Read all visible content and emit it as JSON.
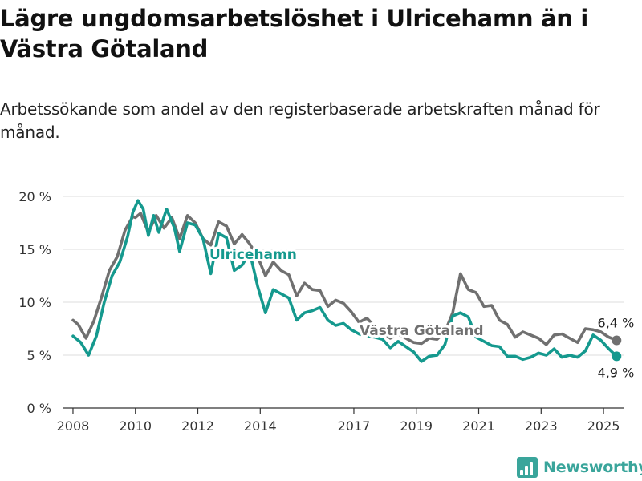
{
  "header": {
    "title": "Lägre ungdomsarbetslöshet i Ulricehamn än i Västra Götaland",
    "subtitle": "Arbetssökande som andel av den registerbaserade arbetskraften månad för månad."
  },
  "brand": {
    "name": "Newsworthy",
    "color": "#3aa59b",
    "icon": "bar-chart-logo-icon"
  },
  "chart_data": {
    "type": "line",
    "title": "Lägre ungdomsarbetslöshet i Ulricehamn än i Västra Götaland",
    "subtitle": "Arbetssökande som andel av den registerbaserade arbetskraften månad för månad.",
    "xlabel": "",
    "ylabel": "",
    "xlim": [
      "2007-09",
      "2025-09"
    ],
    "ylim": [
      0,
      20
    ],
    "grid": true,
    "legend": "inline labels",
    "x_ticks": [
      "2008",
      "2010",
      "2012",
      "2014",
      "2017",
      "2019",
      "2021",
      "2023",
      "2025"
    ],
    "y_ticks": [
      {
        "value": 0,
        "label": "0 %"
      },
      {
        "value": 5,
        "label": "5 %"
      },
      {
        "value": 10,
        "label": "10 %"
      },
      {
        "value": 15,
        "label": "15 %"
      },
      {
        "value": 20,
        "label": "20 %"
      }
    ],
    "series": [
      {
        "name": "Västra Götaland",
        "color": "#707070",
        "end_label": "6,4 %",
        "points": [
          [
            "2008-01",
            8.3
          ],
          [
            "2008-03",
            7.9
          ],
          [
            "2008-06",
            6.6
          ],
          [
            "2008-09",
            8.2
          ],
          [
            "2008-12",
            10.5
          ],
          [
            "2009-03",
            13.0
          ],
          [
            "2009-06",
            14.3
          ],
          [
            "2009-09",
            16.8
          ],
          [
            "2009-12",
            18.1
          ],
          [
            "2010-01",
            18.0
          ],
          [
            "2010-03",
            18.4
          ],
          [
            "2010-06",
            16.6
          ],
          [
            "2010-09",
            18.2
          ],
          [
            "2010-12",
            17.0
          ],
          [
            "2011-03",
            18.0
          ],
          [
            "2011-06",
            16.0
          ],
          [
            "2011-09",
            18.2
          ],
          [
            "2011-12",
            17.5
          ],
          [
            "2012-03",
            16.0
          ],
          [
            "2012-06",
            15.4
          ],
          [
            "2012-09",
            17.6
          ],
          [
            "2012-12",
            17.2
          ],
          [
            "2013-03",
            15.5
          ],
          [
            "2013-06",
            16.4
          ],
          [
            "2013-09",
            15.5
          ],
          [
            "2013-12",
            14.3
          ],
          [
            "2014-03",
            12.5
          ],
          [
            "2014-06",
            13.8
          ],
          [
            "2014-09",
            13.0
          ],
          [
            "2014-12",
            12.6
          ],
          [
            "2015-03",
            10.6
          ],
          [
            "2015-06",
            11.8
          ],
          [
            "2015-09",
            11.2
          ],
          [
            "2015-12",
            11.1
          ],
          [
            "2016-03",
            9.6
          ],
          [
            "2016-06",
            10.2
          ],
          [
            "2016-09",
            9.9
          ],
          [
            "2016-12",
            9.1
          ],
          [
            "2017-03",
            8.1
          ],
          [
            "2017-06",
            8.5
          ],
          [
            "2017-09",
            7.7
          ],
          [
            "2017-12",
            7.2
          ],
          [
            "2018-03",
            6.6
          ],
          [
            "2018-06",
            7.0
          ],
          [
            "2018-09",
            6.6
          ],
          [
            "2018-12",
            6.2
          ],
          [
            "2019-03",
            6.1
          ],
          [
            "2019-06",
            6.6
          ],
          [
            "2019-09",
            6.5
          ],
          [
            "2019-12",
            7.2
          ],
          [
            "2020-03",
            9.0
          ],
          [
            "2020-06",
            12.7
          ],
          [
            "2020-09",
            11.2
          ],
          [
            "2020-12",
            10.9
          ],
          [
            "2021-03",
            9.6
          ],
          [
            "2021-06",
            9.7
          ],
          [
            "2021-09",
            8.3
          ],
          [
            "2021-12",
            7.9
          ],
          [
            "2022-03",
            6.7
          ],
          [
            "2022-06",
            7.2
          ],
          [
            "2022-09",
            6.9
          ],
          [
            "2022-12",
            6.6
          ],
          [
            "2023-03",
            6.0
          ],
          [
            "2023-06",
            6.9
          ],
          [
            "2023-09",
            7.0
          ],
          [
            "2023-12",
            6.6
          ],
          [
            "2024-03",
            6.2
          ],
          [
            "2024-06",
            7.5
          ],
          [
            "2024-09",
            7.4
          ],
          [
            "2024-12",
            7.2
          ],
          [
            "2025-03",
            6.7
          ],
          [
            "2025-06",
            6.4
          ]
        ]
      },
      {
        "name": "Ulricehamn",
        "color": "#15998e",
        "end_label": "4,9 %",
        "points": [
          [
            "2008-01",
            6.8
          ],
          [
            "2008-04",
            6.2
          ],
          [
            "2008-07",
            5.0
          ],
          [
            "2008-10",
            6.8
          ],
          [
            "2009-01",
            10.0
          ],
          [
            "2009-04",
            12.5
          ],
          [
            "2009-07",
            13.8
          ],
          [
            "2009-10",
            16.2
          ],
          [
            "2009-12",
            18.5
          ],
          [
            "2010-02",
            19.6
          ],
          [
            "2010-04",
            18.8
          ],
          [
            "2010-06",
            16.3
          ],
          [
            "2010-08",
            18.2
          ],
          [
            "2010-10",
            16.6
          ],
          [
            "2011-01",
            18.8
          ],
          [
            "2011-04",
            17.0
          ],
          [
            "2011-06",
            14.8
          ],
          [
            "2011-09",
            17.5
          ],
          [
            "2011-12",
            17.3
          ],
          [
            "2012-03",
            16.0
          ],
          [
            "2012-06",
            12.7
          ],
          [
            "2012-09",
            16.5
          ],
          [
            "2012-12",
            16.1
          ],
          [
            "2013-03",
            13.0
          ],
          [
            "2013-06",
            13.5
          ],
          [
            "2013-09",
            14.7
          ],
          [
            "2013-12",
            11.5
          ],
          [
            "2014-03",
            9.0
          ],
          [
            "2014-06",
            11.2
          ],
          [
            "2014-09",
            10.8
          ],
          [
            "2014-12",
            10.4
          ],
          [
            "2015-03",
            8.3
          ],
          [
            "2015-06",
            9.0
          ],
          [
            "2015-09",
            9.2
          ],
          [
            "2015-12",
            9.5
          ],
          [
            "2016-03",
            8.3
          ],
          [
            "2016-06",
            7.8
          ],
          [
            "2016-09",
            8.0
          ],
          [
            "2016-12",
            7.4
          ],
          [
            "2017-03",
            7.0
          ],
          [
            "2017-06",
            6.8
          ],
          [
            "2017-09",
            6.7
          ],
          [
            "2017-12",
            6.5
          ],
          [
            "2018-03",
            5.7
          ],
          [
            "2018-06",
            6.3
          ],
          [
            "2018-09",
            5.8
          ],
          [
            "2018-12",
            5.3
          ],
          [
            "2019-03",
            4.4
          ],
          [
            "2019-06",
            4.9
          ],
          [
            "2019-09",
            5.0
          ],
          [
            "2019-12",
            6.0
          ],
          [
            "2020-03",
            8.7
          ],
          [
            "2020-06",
            9.0
          ],
          [
            "2020-09",
            8.6
          ],
          [
            "2020-12",
            6.7
          ],
          [
            "2021-03",
            6.3
          ],
          [
            "2021-06",
            5.9
          ],
          [
            "2021-09",
            5.8
          ],
          [
            "2021-12",
            4.9
          ],
          [
            "2022-03",
            4.9
          ],
          [
            "2022-06",
            4.6
          ],
          [
            "2022-09",
            4.8
          ],
          [
            "2022-12",
            5.2
          ],
          [
            "2023-03",
            5.0
          ],
          [
            "2023-06",
            5.6
          ],
          [
            "2023-09",
            4.8
          ],
          [
            "2023-12",
            5.0
          ],
          [
            "2024-03",
            4.8
          ],
          [
            "2024-06",
            5.4
          ],
          [
            "2024-09",
            6.9
          ],
          [
            "2024-12",
            6.4
          ],
          [
            "2025-03",
            5.6
          ],
          [
            "2025-06",
            4.9
          ]
        ]
      }
    ]
  }
}
